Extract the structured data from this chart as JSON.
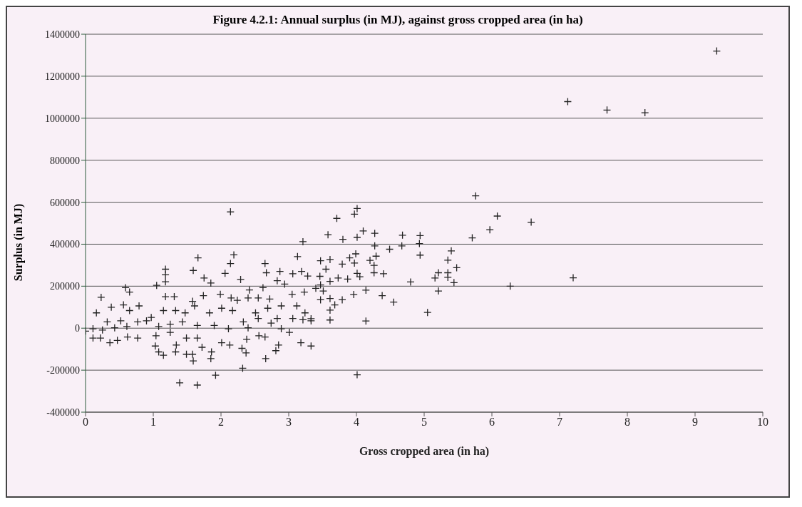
{
  "chart_data": {
    "type": "scatter",
    "title": "Figure 4.2.1: Annual surplus (in MJ), against gross cropped area (in ha)",
    "xlabel": "Gross cropped area (in ha)",
    "ylabel": "Surplus (in MJ)",
    "xlim": [
      0,
      10
    ],
    "xticks": [
      0,
      1,
      2,
      3,
      4,
      5,
      6,
      7,
      8,
      9,
      10
    ],
    "ylim": [
      -400000,
      1400000
    ],
    "yticks": [
      -400000,
      -200000,
      0,
      200000,
      400000,
      600000,
      800000,
      1000000,
      1200000,
      1400000
    ],
    "grid": "y",
    "marker": "cross",
    "legend": false,
    "series": [
      {
        "color": "#222222",
        "x": [
          9.32,
          7.12,
          7.7,
          8.26,
          5.76,
          6.08,
          6.58,
          5.97,
          5.71,
          6.27,
          7.2,
          2.14,
          3.21,
          3.13,
          1.66,
          2.19,
          2.14,
          1.59,
          1.18,
          1.18,
          1.18,
          1.05,
          1.75,
          2.06,
          2.29,
          2.65,
          2.67,
          2.87,
          3.06,
          3.19,
          3.28,
          0.59,
          0.65,
          0.23,
          1.85,
          2.42,
          2.62,
          2.83,
          2.94,
          3.23,
          1.31,
          1.18,
          1.58,
          1.74,
          1.99,
          2.15,
          2.24,
          2.4,
          2.55,
          2.72,
          3.05,
          0.16,
          0.38,
          0.56,
          0.65,
          0.79,
          0.97,
          1.15,
          1.33,
          1.47,
          1.61,
          1.83,
          2.01,
          2.17,
          2.51,
          2.69,
          2.89,
          3.12,
          3.24,
          3.06,
          3.21,
          3.33,
          2.74,
          2.83,
          2.55,
          2.33,
          0.77,
          0.52,
          0.32,
          0.11,
          0.0,
          0.25,
          0.43,
          0.61,
          0.9,
          1.08,
          1.25,
          1.43,
          1.65,
          1.9,
          2.11,
          2.4,
          2.89,
          3.01,
          0.11,
          0.22,
          0.36,
          0.47,
          0.62,
          0.77,
          1.04,
          1.25,
          1.49,
          1.65,
          2.01,
          2.13,
          2.38,
          2.56,
          2.65,
          3.18,
          3.33,
          2.85,
          1.03,
          1.08,
          1.15,
          1.34,
          1.33,
          1.49,
          1.58,
          1.59,
          1.72,
          1.86,
          1.85,
          2.31,
          2.37,
          2.66,
          2.81,
          2.32,
          1.92,
          1.39,
          1.65,
          4.01,
          3.97,
          3.71,
          4.1,
          4.27,
          3.58,
          3.8,
          4.01,
          4.68,
          4.94,
          4.27,
          4.49,
          4.67,
          4.93,
          4.94,
          5.4,
          5.35,
          5.48,
          5.21,
          5.35,
          5.16,
          5.35,
          5.44,
          4.8,
          5.21,
          5.05,
          4.55,
          4.38,
          4.14,
          3.96,
          3.47,
          3.61,
          3.79,
          3.55,
          3.9,
          3.99,
          3.97,
          4.2,
          4.29,
          4.26,
          4.26,
          4.4,
          4.01,
          4.05,
          3.46,
          3.61,
          3.73,
          3.87,
          3.47,
          3.4,
          3.51,
          3.47,
          3.61,
          3.68,
          3.79,
          3.61,
          3.61,
          4.14,
          3.33,
          4.01
        ],
        "values": [
          1320000,
          1079000,
          1039000,
          1026000,
          630000,
          534000,
          505000,
          469000,
          430000,
          200000,
          240000,
          554000,
          412000,
          341000,
          335000,
          349000,
          308000,
          275000,
          281000,
          254000,
          221000,
          204000,
          239000,
          261000,
          232000,
          308000,
          264000,
          270000,
          259000,
          270000,
          248000,
          193000,
          172000,
          147000,
          215000,
          182000,
          193000,
          226000,
          210000,
          172000,
          150000,
          150000,
          128000,
          155000,
          161000,
          144000,
          133000,
          144000,
          144000,
          139000,
          161000,
          73000,
          100000,
          111000,
          84000,
          106000,
          51000,
          84000,
          84000,
          73000,
          106000,
          73000,
          95000,
          84000,
          73000,
          95000,
          106000,
          106000,
          73000,
          46000,
          40000,
          35000,
          24000,
          46000,
          46000,
          30000,
          30000,
          35000,
          30000,
          -3000,
          -14000,
          -9000,
          2000,
          8000,
          35000,
          8000,
          19000,
          30000,
          13000,
          13000,
          -3000,
          2000,
          -3000,
          -20000,
          -47000,
          -47000,
          -69000,
          -58000,
          -42000,
          -47000,
          -36000,
          -20000,
          -47000,
          -47000,
          -69000,
          -80000,
          -53000,
          -36000,
          -42000,
          -69000,
          -85000,
          -80000,
          -85000,
          -113000,
          -129000,
          -80000,
          -113000,
          -124000,
          -124000,
          -156000,
          -91000,
          -113000,
          -145000,
          -96000,
          -118000,
          -145000,
          -107000,
          -191000,
          -224000,
          -260000,
          -271000,
          570000,
          543000,
          523000,
          463000,
          452000,
          445000,
          423000,
          433000,
          443000,
          441000,
          392000,
          376000,
          392000,
          403000,
          348000,
          368000,
          324000,
          288000,
          264000,
          264000,
          239000,
          242000,
          217000,
          220000,
          177000,
          75000,
          124000,
          155000,
          181000,
          160000,
          321000,
          327000,
          305000,
          281000,
          335000,
          354000,
          310000,
          323000,
          343000,
          299000,
          264000,
          259000,
          261000,
          245000,
          247000,
          223000,
          239000,
          234000,
          206000,
          190000,
          177000,
          135000,
          141000,
          111000,
          135000,
          86000,
          39000,
          34000,
          45000,
          -222000
        ]
      }
    ]
  }
}
